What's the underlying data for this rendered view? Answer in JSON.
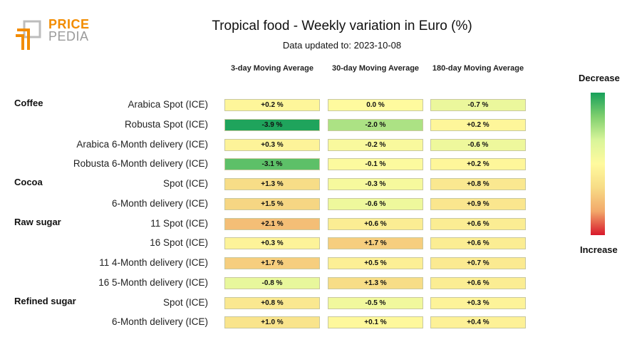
{
  "logo": {
    "line1": "PRICE",
    "line2": "PEDIA"
  },
  "colors": {
    "scale": [
      "#17a05a",
      "#7fcf6e",
      "#d9f59a",
      "#fffa9e",
      "#f7dc86",
      "#f2a86a",
      "#d8182b"
    ],
    "cell_border": "#c8c8a0"
  },
  "chart_data": {
    "type": "table",
    "title": "Tropical food - Weekly variation in Euro (%)",
    "subtitle": "Data updated to: 2023-10-08",
    "columns": [
      "3-day Moving Average",
      "30-day Moving Average",
      "180-day Moving Average"
    ],
    "legend": {
      "top": "Decrease",
      "bottom": "Increase"
    },
    "groups": [
      {
        "name": "Coffee",
        "rows": [
          {
            "label": "Arabica Spot (ICE)",
            "values": [
              0.2,
              0.0,
              -0.7
            ],
            "display": [
              "+0.2 %",
              "0.0 %",
              "-0.7 %"
            ]
          },
          {
            "label": "Robusta Spot (ICE)",
            "values": [
              -3.9,
              -2.0,
              0.2
            ],
            "display": [
              "-3.9 %",
              "-2.0 %",
              "+0.2 %"
            ]
          },
          {
            "label": "Arabica 6-Month delivery (ICE)",
            "values": [
              0.3,
              -0.2,
              -0.6
            ],
            "display": [
              "+0.3 %",
              "-0.2 %",
              "-0.6 %"
            ]
          },
          {
            "label": "Robusta 6-Month delivery (ICE)",
            "values": [
              -3.1,
              -0.1,
              0.2
            ],
            "display": [
              "-3.1 %",
              "-0.1 %",
              "+0.2 %"
            ]
          }
        ]
      },
      {
        "name": "Cocoa",
        "rows": [
          {
            "label": "Spot (ICE)",
            "values": [
              1.3,
              -0.3,
              0.8
            ],
            "display": [
              "+1.3 %",
              "-0.3 %",
              "+0.8 %"
            ]
          },
          {
            "label": "6-Month delivery (ICE)",
            "values": [
              1.5,
              -0.6,
              0.9
            ],
            "display": [
              "+1.5 %",
              "-0.6 %",
              "+0.9 %"
            ]
          }
        ]
      },
      {
        "name": "Raw sugar",
        "rows": [
          {
            "label": "11 Spot (ICE)",
            "values": [
              2.1,
              0.6,
              0.6
            ],
            "display": [
              "+2.1 %",
              "+0.6 %",
              "+0.6 %"
            ]
          },
          {
            "label": "16 Spot (ICE)",
            "values": [
              0.3,
              1.7,
              0.6
            ],
            "display": [
              "+0.3 %",
              "+1.7 %",
              "+0.6 %"
            ]
          },
          {
            "label": "11 4-Month delivery (ICE)",
            "values": [
              1.7,
              0.5,
              0.7
            ],
            "display": [
              "+1.7 %",
              "+0.5 %",
              "+0.7 %"
            ]
          },
          {
            "label": "16 5-Month delivery (ICE)",
            "values": [
              -0.8,
              1.3,
              0.6
            ],
            "display": [
              "-0.8 %",
              "+1.3 %",
              "+0.6 %"
            ]
          }
        ]
      },
      {
        "name": "Refined sugar",
        "rows": [
          {
            "label": "Spot (ICE)",
            "values": [
              0.8,
              -0.5,
              0.3
            ],
            "display": [
              "+0.8 %",
              "-0.5 %",
              "+0.3 %"
            ]
          },
          {
            "label": "6-Month delivery (ICE)",
            "values": [
              1.0,
              0.1,
              0.4
            ],
            "display": [
              "+1.0 %",
              "+0.1 %",
              "+0.4 %"
            ]
          }
        ]
      }
    ]
  }
}
